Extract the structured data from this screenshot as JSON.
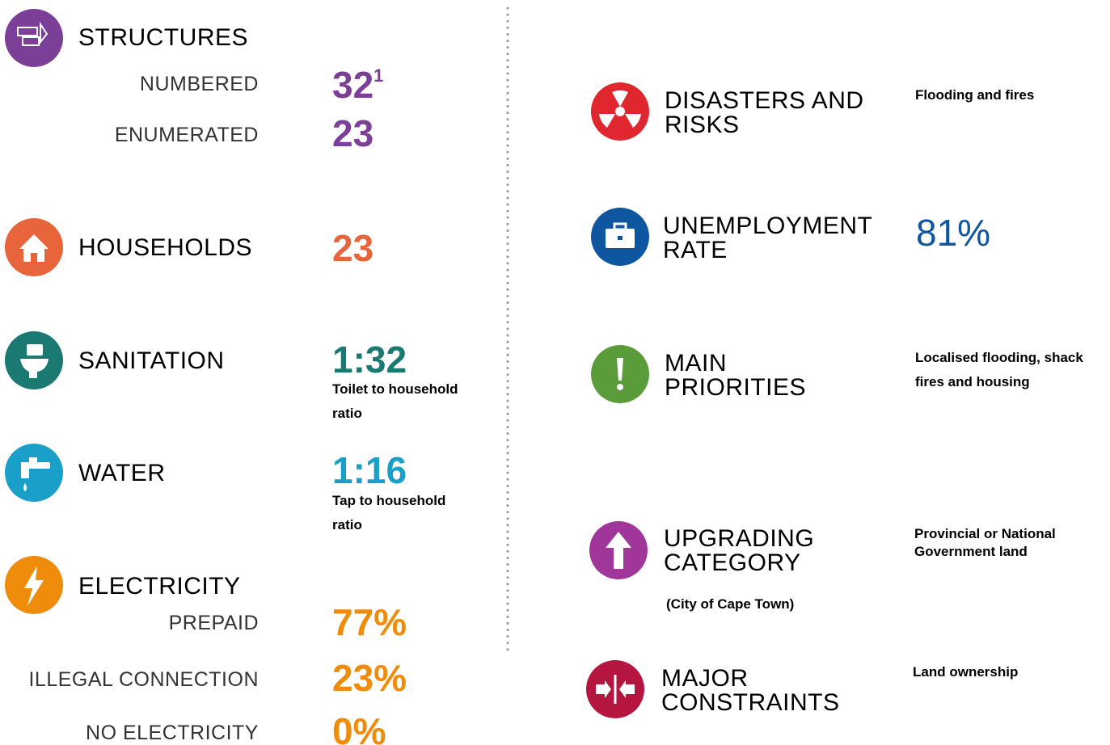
{
  "left": {
    "structures": {
      "label": "STRUCTURES",
      "rows": [
        {
          "label": "NUMBERED",
          "value": "32",
          "note": "1"
        },
        {
          "label": "ENUMERATED",
          "value": "23"
        }
      ]
    },
    "households": {
      "label": "HOUSEHOLDS",
      "value": "23"
    },
    "sanitation": {
      "label": "SANITATION",
      "value": "1:32",
      "caption": "Toilet to household ratio"
    },
    "water": {
      "label": "WATER",
      "value": "1:16",
      "caption": "Tap to household ratio"
    },
    "electricity": {
      "label": "ELECTRICITY",
      "rows": [
        {
          "label": "PREPAID",
          "value": "77%"
        },
        {
          "label": "ILLEGAL CONNECTION",
          "value": "23%"
        },
        {
          "label": "NO ELECTRICITY",
          "value": "0%"
        }
      ]
    }
  },
  "right": {
    "disasters": {
      "label": "DISASTERS AND RISKS",
      "value": "Flooding and fires"
    },
    "unemployment": {
      "label": "UNEMPLOYMENT RATE",
      "value": "81%"
    },
    "priorities": {
      "label": "MAIN PRIORITIES",
      "value": "Localised flooding, shack fires and housing"
    },
    "upgrading": {
      "label": "UPGRADING CATEGORY",
      "note": "(City of Cape Town)",
      "value": "Provincial or National Government land"
    },
    "constraints": {
      "label": "MAJOR CONSTRAINTS",
      "value": "Land ownership"
    }
  }
}
